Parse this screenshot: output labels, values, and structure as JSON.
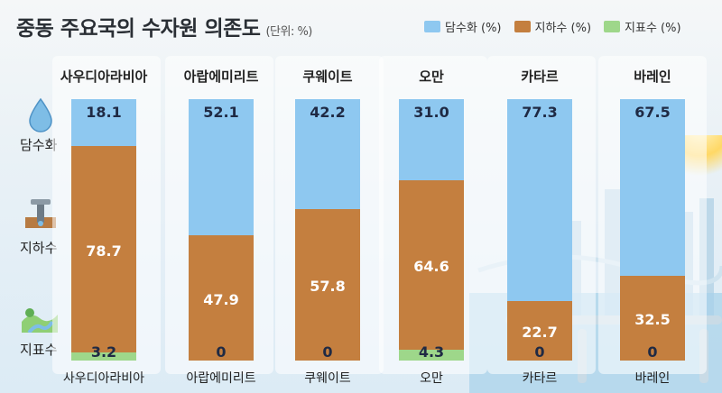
{
  "title": "중동 주요국의 수자원 의존도",
  "unit": "(단위: %)",
  "legend": [
    {
      "label": "담수화 (%)",
      "color": "#8ec8f0"
    },
    {
      "label": "지하수 (%)",
      "color": "#c47f3f"
    },
    {
      "label": "지표수 (%)",
      "color": "#9ed78a"
    }
  ],
  "side_labels": [
    "담수화",
    "지하수",
    "지표수"
  ],
  "chart_data": {
    "type": "bar",
    "stacked": true,
    "title": "중동 주요국의 수자원 의존도",
    "unit": "%",
    "categories": [
      "사우디아라비아",
      "아랍에미리트",
      "쿠웨이트",
      "오만",
      "카타르",
      "바레인"
    ],
    "series": [
      {
        "name": "지표수 (%)",
        "color": "#9ed78a",
        "values": [
          3.2,
          0,
          0,
          4.3,
          0,
          0
        ]
      },
      {
        "name": "지하수 (%)",
        "color": "#c47f3f",
        "values": [
          78.7,
          47.9,
          57.8,
          64.6,
          22.7,
          32.5
        ]
      },
      {
        "name": "담수화 (%)",
        "color": "#8ec8f0",
        "values": [
          18.1,
          52.1,
          42.2,
          31.0,
          77.3,
          67.5
        ]
      }
    ],
    "data_labels": {
      "desal": [
        "18.1",
        "52.1",
        "42.2",
        "31.0",
        "77.3",
        "67.5"
      ],
      "ground": [
        "78.7",
        "47.9",
        "57.8",
        "64.6",
        "22.7",
        "32.5"
      ],
      "surface": [
        "3.2",
        "0",
        "0",
        "4.3",
        "0",
        "0"
      ]
    },
    "ylim": [
      0,
      100
    ],
    "legend_position": "top-right"
  }
}
